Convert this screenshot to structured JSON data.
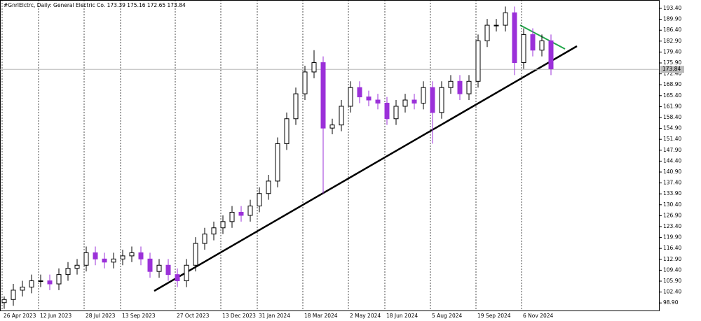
{
  "chart_data": {
    "type": "candlestick",
    "title": "#GnrlElctrc, Daily:  General Electric Co.  173.39 175.16 172.65 173.84",
    "categories": [
      "26 Apr 2023",
      null,
      null,
      null,
      "12 Jun 2023",
      null,
      null,
      null,
      null,
      "28 Jul 2023",
      null,
      null,
      null,
      "13 Sep 2023",
      null,
      null,
      null,
      null,
      null,
      "27 Oct 2023",
      null,
      null,
      null,
      null,
      "13 Dec 2023",
      null,
      null,
      null,
      "31 Jan 2024",
      null,
      null,
      null,
      null,
      "18 Mar 2024",
      null,
      null,
      null,
      null,
      "2 May 2024",
      null,
      null,
      null,
      "18 Jun 2024",
      null,
      null,
      null,
      null,
      "5 Aug 2024",
      null,
      null,
      null,
      null,
      "19 Sep 2024",
      null,
      null,
      null,
      null,
      "6 Nov 2024",
      null,
      null,
      null
    ],
    "open": [
      99,
      100,
      103,
      104,
      106,
      106,
      105,
      108,
      110,
      111,
      115,
      113,
      112,
      113,
      114,
      115,
      113,
      109,
      111,
      108,
      106,
      111,
      118,
      121,
      123,
      125,
      128,
      127,
      130,
      134,
      138,
      150,
      158,
      166,
      173,
      176,
      155,
      156,
      162,
      168,
      165,
      164,
      163,
      158,
      162,
      164,
      163,
      168,
      160,
      168,
      170,
      166,
      170,
      183,
      188,
      188,
      192,
      176,
      185,
      180,
      183
    ],
    "high": [
      101,
      105,
      106,
      108,
      108,
      108,
      110,
      112,
      113,
      117,
      117,
      115,
      115,
      116,
      117,
      117,
      115,
      113,
      113,
      110,
      113,
      120,
      123,
      125,
      127,
      130,
      130,
      132,
      136,
      140,
      152,
      160,
      168,
      175,
      180,
      178,
      158,
      164,
      170,
      170,
      167,
      166,
      165,
      164,
      166,
      166,
      170,
      170,
      170,
      172,
      172,
      172,
      185,
      190,
      190,
      194,
      194,
      187,
      187,
      185,
      185
    ],
    "low": [
      97,
      98,
      101,
      102,
      104,
      103,
      103,
      106,
      108,
      109,
      111,
      110,
      110,
      111,
      112,
      111,
      107,
      107,
      106,
      104,
      104,
      109,
      116,
      119,
      121,
      123,
      125,
      125,
      128,
      132,
      136,
      148,
      156,
      164,
      171,
      134,
      153,
      154,
      160,
      163,
      162,
      161,
      156,
      156,
      160,
      161,
      161,
      150,
      158,
      166,
      164,
      164,
      168,
      181,
      186,
      186,
      172,
      174,
      178,
      178,
      172
    ],
    "close": [
      100,
      103,
      104,
      106,
      106,
      105,
      108,
      110,
      111,
      115,
      113,
      112,
      113,
      114,
      115,
      113,
      109,
      111,
      108,
      106,
      111,
      118,
      121,
      123,
      125,
      128,
      127,
      130,
      134,
      138,
      150,
      158,
      166,
      173,
      176,
      155,
      156,
      162,
      168,
      165,
      164,
      163,
      158,
      162,
      164,
      163,
      168,
      160,
      168,
      170,
      166,
      170,
      183,
      188,
      188,
      192,
      176,
      185,
      180,
      183,
      174
    ],
    "up_color": "#000000",
    "down_color": "#9b30d9",
    "ylim": [
      96.25,
      196.09
    ],
    "yticks": [
      {
        "value": 193.4,
        "label": "193.40"
      },
      {
        "value": 189.9,
        "label": "189.90"
      },
      {
        "value": 186.4,
        "label": "186.40"
      },
      {
        "value": 182.9,
        "label": "182.90"
      },
      {
        "value": 179.4,
        "label": "179.40"
      },
      {
        "value": 175.9,
        "label": "175.90"
      },
      {
        "value": 172.4,
        "label": "172.40"
      },
      {
        "value": 168.9,
        "label": "168.90"
      },
      {
        "value": 165.4,
        "label": "165.40"
      },
      {
        "value": 161.9,
        "label": "161.90"
      },
      {
        "value": 158.4,
        "label": "158.40"
      },
      {
        "value": 154.9,
        "label": "154.90"
      },
      {
        "value": 151.4,
        "label": "151.40"
      },
      {
        "value": 147.9,
        "label": "147.90"
      },
      {
        "value": 144.4,
        "label": "144.40"
      },
      {
        "value": 140.9,
        "label": "140.90"
      },
      {
        "value": 137.4,
        "label": "137.40"
      },
      {
        "value": 133.9,
        "label": "133.90"
      },
      {
        "value": 130.4,
        "label": "130.40"
      },
      {
        "value": 126.9,
        "label": "126.90"
      },
      {
        "value": 123.4,
        "label": "123.40"
      },
      {
        "value": 119.9,
        "label": "119.90"
      },
      {
        "value": 116.4,
        "label": "116.40"
      },
      {
        "value": 112.9,
        "label": "112.90"
      },
      {
        "value": 109.4,
        "label": "109.40"
      },
      {
        "value": 105.9,
        "label": "105.90"
      },
      {
        "value": 102.4,
        "label": "102.40"
      },
      {
        "value": 98.9,
        "label": "98.90"
      }
    ],
    "last_price": {
      "value": 173.84,
      "label": "173.84"
    }
  }
}
